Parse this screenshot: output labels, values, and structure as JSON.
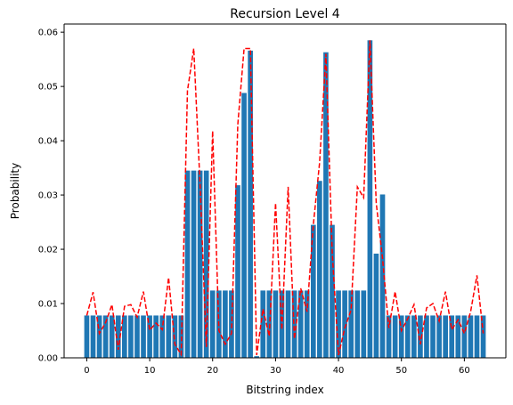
{
  "chart_data": {
    "type": "bar",
    "title": "Recursion Level 4",
    "xlabel": "Bitstring index",
    "ylabel": "Probability",
    "xlim": [
      -3.6,
      66.6
    ],
    "ylim": [
      0.0,
      0.0615
    ],
    "xticks": [
      0,
      10,
      20,
      30,
      40,
      50,
      60
    ],
    "yticks": [
      0.0,
      0.01,
      0.02,
      0.03,
      0.04,
      0.05,
      0.06
    ],
    "ytick_labels": [
      "0.00",
      "0.01",
      "0.02",
      "0.03",
      "0.04",
      "0.05",
      "0.06"
    ],
    "grid": false,
    "legend": false,
    "x": [
      0,
      1,
      2,
      3,
      4,
      5,
      6,
      7,
      8,
      9,
      10,
      11,
      12,
      13,
      14,
      15,
      16,
      17,
      18,
      19,
      20,
      21,
      22,
      23,
      24,
      25,
      26,
      27,
      28,
      29,
      30,
      31,
      32,
      33,
      34,
      35,
      36,
      37,
      38,
      39,
      40,
      41,
      42,
      43,
      44,
      45,
      46,
      47,
      48,
      49,
      50,
      51,
      52,
      53,
      54,
      55,
      56,
      57,
      58,
      59,
      60,
      61,
      62,
      63
    ],
    "series": [
      {
        "kind": "bar",
        "color": "#1f77b4",
        "values": [
          0.0078,
          0.0078,
          0.0078,
          0.0078,
          0.0078,
          0.0078,
          0.0078,
          0.0078,
          0.0078,
          0.0078,
          0.0078,
          0.0078,
          0.0078,
          0.0078,
          0.0078,
          0.0078,
          0.0345,
          0.0345,
          0.0345,
          0.0345,
          0.0124,
          0.0124,
          0.0124,
          0.0124,
          0.0318,
          0.0488,
          0.0566,
          0.0003,
          0.0124,
          0.0124,
          0.0124,
          0.0124,
          0.0124,
          0.0124,
          0.0124,
          0.0124,
          0.0245,
          0.0326,
          0.0563,
          0.0245,
          0.0124,
          0.0124,
          0.0124,
          0.0124,
          0.0124,
          0.0585,
          0.0192,
          0.0301,
          0.0078,
          0.0078,
          0.0078,
          0.0078,
          0.0078,
          0.0078,
          0.0078,
          0.0078,
          0.0078,
          0.0078,
          0.0078,
          0.0078,
          0.0078,
          0.0078,
          0.0078,
          0.0078
        ]
      },
      {
        "kind": "line",
        "style": "dashed",
        "color": "#ff0000",
        "values": [
          0.0078,
          0.0121,
          0.0045,
          0.0065,
          0.0098,
          0.0015,
          0.0095,
          0.0098,
          0.0075,
          0.0122,
          0.0051,
          0.0064,
          0.0052,
          0.0148,
          0.0025,
          0.0006,
          0.0492,
          0.057,
          0.032,
          0.002,
          0.0418,
          0.005,
          0.0025,
          0.0045,
          0.043,
          0.057,
          0.057,
          0.0005,
          0.009,
          0.004,
          0.0285,
          0.0052,
          0.0315,
          0.0035,
          0.0128,
          0.0085,
          0.0245,
          0.036,
          0.056,
          0.0195,
          0.0005,
          0.0055,
          0.0088,
          0.0315,
          0.0295,
          0.0585,
          0.0285,
          0.0183,
          0.0055,
          0.0122,
          0.005,
          0.0072,
          0.0098,
          0.0025,
          0.0092,
          0.01,
          0.0068,
          0.0122,
          0.0052,
          0.007,
          0.0045,
          0.0085,
          0.0152,
          0.0045
        ]
      }
    ]
  }
}
